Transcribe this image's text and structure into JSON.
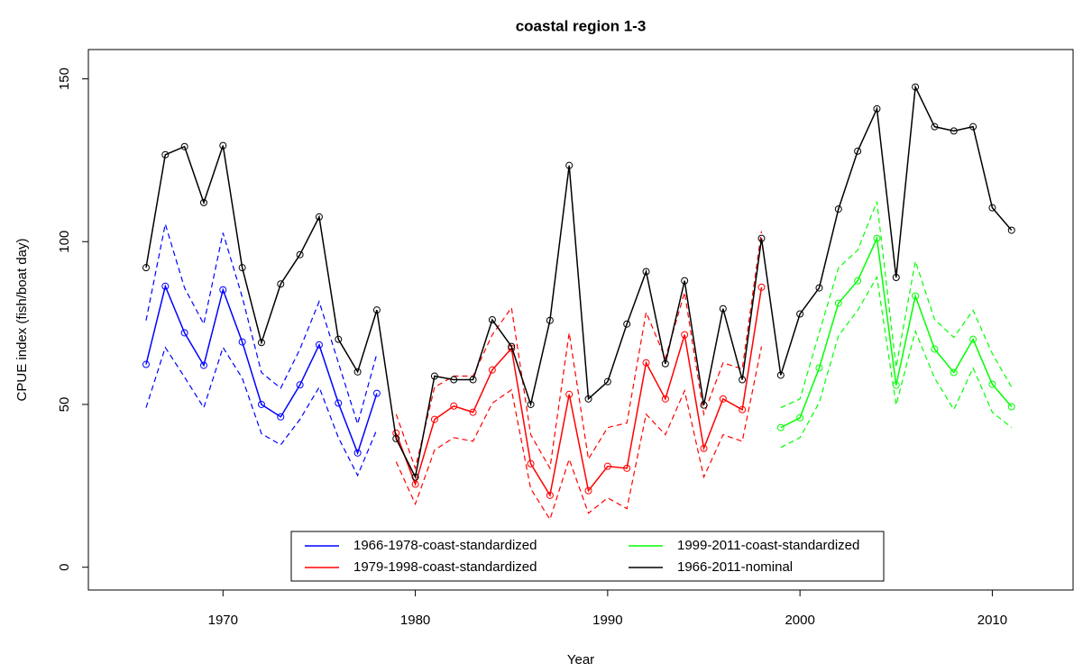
{
  "chart_data": {
    "type": "line",
    "title": "coastal region 1-3",
    "x_label": "Year",
    "y_label": "CPUE index (fish/boat day)",
    "xlim": [
      1963,
      2014.2
    ],
    "xticks": [
      1970,
      1980,
      1990,
      2000,
      2010
    ],
    "ylim": [
      -7,
      159
    ],
    "yticks": [
      0,
      50,
      100,
      150
    ],
    "legend": "bottom",
    "series": [
      {
        "name": "1966-1978-coast-standardized",
        "color": "#0000ff",
        "x": [
          1966,
          1967,
          1968,
          1969,
          1970,
          1971,
          1972,
          1973,
          1974,
          1975,
          1976,
          1977,
          1978
        ],
        "values": [
          62.3,
          86.3,
          72,
          62,
          85.2,
          69.2,
          50,
          46.2,
          56,
          68.3,
          50.4,
          35.1,
          53.4
        ],
        "upper": [
          75.8,
          105.4,
          85.8,
          74.7,
          102.7,
          83,
          59.8,
          55,
          67,
          81.6,
          62.8,
          44,
          65.6
        ],
        "lower": [
          49,
          67.5,
          58.4,
          49,
          67.5,
          58.1,
          41,
          37.6,
          45.4,
          55.3,
          39.8,
          28.2,
          42.3
        ]
      },
      {
        "name": "1979-1998-coast-standardized",
        "color": "#ff0000",
        "x": [
          1979,
          1980,
          1981,
          1982,
          1983,
          1984,
          1985,
          1986,
          1987,
          1988,
          1989,
          1990,
          1991,
          1992,
          1993,
          1994,
          1995,
          1996,
          1997,
          1998
        ],
        "values": [
          41.2,
          25.5,
          45.4,
          49.5,
          47.6,
          60.6,
          67.2,
          31.8,
          22.1,
          53.1,
          23.5,
          31,
          30.4,
          62.8,
          51.7,
          71.4,
          36.5,
          51.7,
          48.4,
          86
        ],
        "upper": [
          47,
          30.4,
          55.3,
          58.7,
          58.7,
          71.4,
          79.7,
          40.7,
          30.4,
          72,
          33.2,
          42.9,
          44.3,
          78.3,
          64.2,
          84.4,
          47,
          62.8,
          60.9,
          103.2
        ],
        "lower": [
          32.4,
          19.4,
          36,
          39.8,
          38.7,
          50.4,
          54.5,
          24.1,
          14.7,
          33.2,
          16.6,
          21.3,
          18,
          47,
          40.7,
          54.2,
          27.7,
          40.7,
          38.7,
          67.8
        ]
      },
      {
        "name": "1999-2011-coast-standardized",
        "color": "#00ff00",
        "x": [
          1999,
          2000,
          2001,
          2002,
          2003,
          2004,
          2005,
          2006,
          2007,
          2008,
          2009,
          2010,
          2011
        ],
        "values": [
          42.9,
          45.9,
          61.2,
          81.1,
          88,
          101,
          55.9,
          83.3,
          67,
          59.8,
          70,
          56.2,
          49.3
        ],
        "upper": [
          49,
          51.7,
          72,
          91.9,
          97.4,
          112.3,
          61.4,
          94,
          76.1,
          70.6,
          78.9,
          65.6,
          55.3
        ],
        "lower": [
          36.8,
          39.8,
          50.6,
          71.1,
          78.9,
          89.1,
          49.8,
          72.5,
          58.1,
          48.4,
          61.2,
          47.6,
          42.9
        ]
      },
      {
        "name": "1966-2011-nominal",
        "color": "#000000",
        "x": [
          1966,
          1967,
          1968,
          1969,
          1970,
          1971,
          1972,
          1973,
          1974,
          1975,
          1976,
          1977,
          1978,
          1979,
          1980,
          1981,
          1982,
          1983,
          1984,
          1985,
          1986,
          1987,
          1988,
          1989,
          1990,
          1991,
          1992,
          1993,
          1994,
          1995,
          1996,
          1997,
          1998,
          1999,
          2000,
          2001,
          2002,
          2003,
          2004,
          2005,
          2006,
          2007,
          2008,
          2009,
          2010,
          2011
        ],
        "values": [
          92,
          126.7,
          129.2,
          112,
          129.5,
          92,
          69,
          87,
          96,
          107.6,
          70,
          60,
          79,
          39.5,
          27.7,
          58.7,
          57.6,
          57.6,
          76,
          67.8,
          50,
          75.8,
          123.4,
          51.7,
          57,
          74.7,
          90.8,
          62.5,
          88,
          49.8,
          79.4,
          57.6,
          101,
          59,
          77.8,
          85.8,
          110,
          127.8,
          140.8,
          89,
          147.5,
          135.3,
          134,
          135.3,
          110.4,
          103.5
        ]
      }
    ]
  }
}
